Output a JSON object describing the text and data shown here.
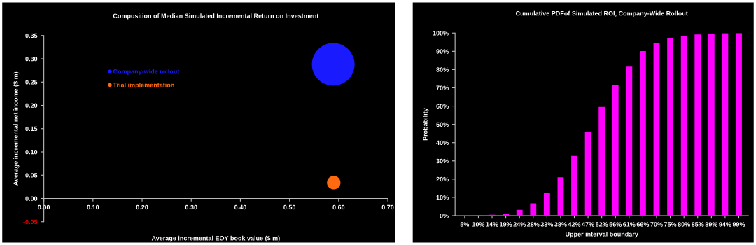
{
  "chart_data": [
    {
      "type": "bubble",
      "title": "Composition of Median Simulated Incremental Return on Investment",
      "xlabel": "Average incremental EOY book value ($ m)",
      "ylabel": "Average incremental net income ($ m)",
      "series": [
        {
          "name": "Company-wide rollout",
          "color": "#1a1aff",
          "x": [
            0.589
          ],
          "values": [
            0.288
          ],
          "sizes": [
            1
          ]
        },
        {
          "name": "Trial implementation",
          "color": "#ff6a10",
          "x": [
            0.59
          ],
          "values": [
            0.034
          ],
          "sizes": [
            0.1
          ]
        }
      ],
      "xlim": [
        0,
        0.7
      ],
      "xticks": [
        {
          "value": 0,
          "label": "0.00"
        },
        {
          "value": 0.1,
          "label": "0.10"
        },
        {
          "value": 0.2,
          "label": "0.20"
        },
        {
          "value": 0.3,
          "label": "0.30"
        },
        {
          "value": 0.4,
          "label": "0.40"
        },
        {
          "value": 0.5,
          "label": "0.50"
        },
        {
          "value": 0.6,
          "label": "0.60"
        },
        {
          "value": 0.7,
          "label": "0.70"
        }
      ],
      "ylim": [
        -0.05,
        0.35
      ],
      "yticks": [
        {
          "value": -0.05,
          "label": "-0.05"
        },
        {
          "value": 0,
          "label": "0.00"
        },
        {
          "value": 0.05,
          "label": "0.05"
        },
        {
          "value": 0.1,
          "label": "0.10"
        },
        {
          "value": 0.15,
          "label": "0.15"
        },
        {
          "value": 0.2,
          "label": "0.20"
        },
        {
          "value": 0.25,
          "label": "0.25"
        },
        {
          "value": 0.3,
          "label": "0.30"
        },
        {
          "value": 0.35,
          "label": "0.35"
        }
      ],
      "legend": "top left",
      "grid": false
    },
    {
      "type": "bar",
      "title": "Cumulative PDFof Simulated ROI, Company-Wide Rollout",
      "xlabel": "Upper interval boundary",
      "ylabel": "Probability",
      "categories": [
        "5%",
        "10%",
        "14%",
        "19%",
        "24%",
        "28%",
        "33%",
        "38%",
        "42%",
        "47%",
        "52%",
        "56%",
        "61%",
        "66%",
        "70%",
        "75%",
        "80%",
        "85%",
        "89%",
        "94%",
        "99%"
      ],
      "values": [
        0,
        0.2,
        0.5,
        1.0,
        3.2,
        6.7,
        12.6,
        21,
        32.7,
        45.8,
        59.5,
        71.7,
        81.6,
        90.1,
        94.4,
        97.1,
        98.5,
        99.2,
        99.7,
        99.9,
        100
      ],
      "color": "#ff00ff",
      "ylim": [
        0,
        100
      ],
      "yticks": [
        {
          "value": 0,
          "label": "0%"
        },
        {
          "value": 10,
          "label": "10%"
        },
        {
          "value": 20,
          "label": "20%"
        },
        {
          "value": 30,
          "label": "30%"
        },
        {
          "value": 40,
          "label": "40%"
        },
        {
          "value": 50,
          "label": "50%"
        },
        {
          "value": 60,
          "label": "60%"
        },
        {
          "value": 70,
          "label": "70%"
        },
        {
          "value": 80,
          "label": "80%"
        },
        {
          "value": 90,
          "label": "90%"
        },
        {
          "value": 100,
          "label": "100%"
        }
      ],
      "grid": false
    }
  ]
}
